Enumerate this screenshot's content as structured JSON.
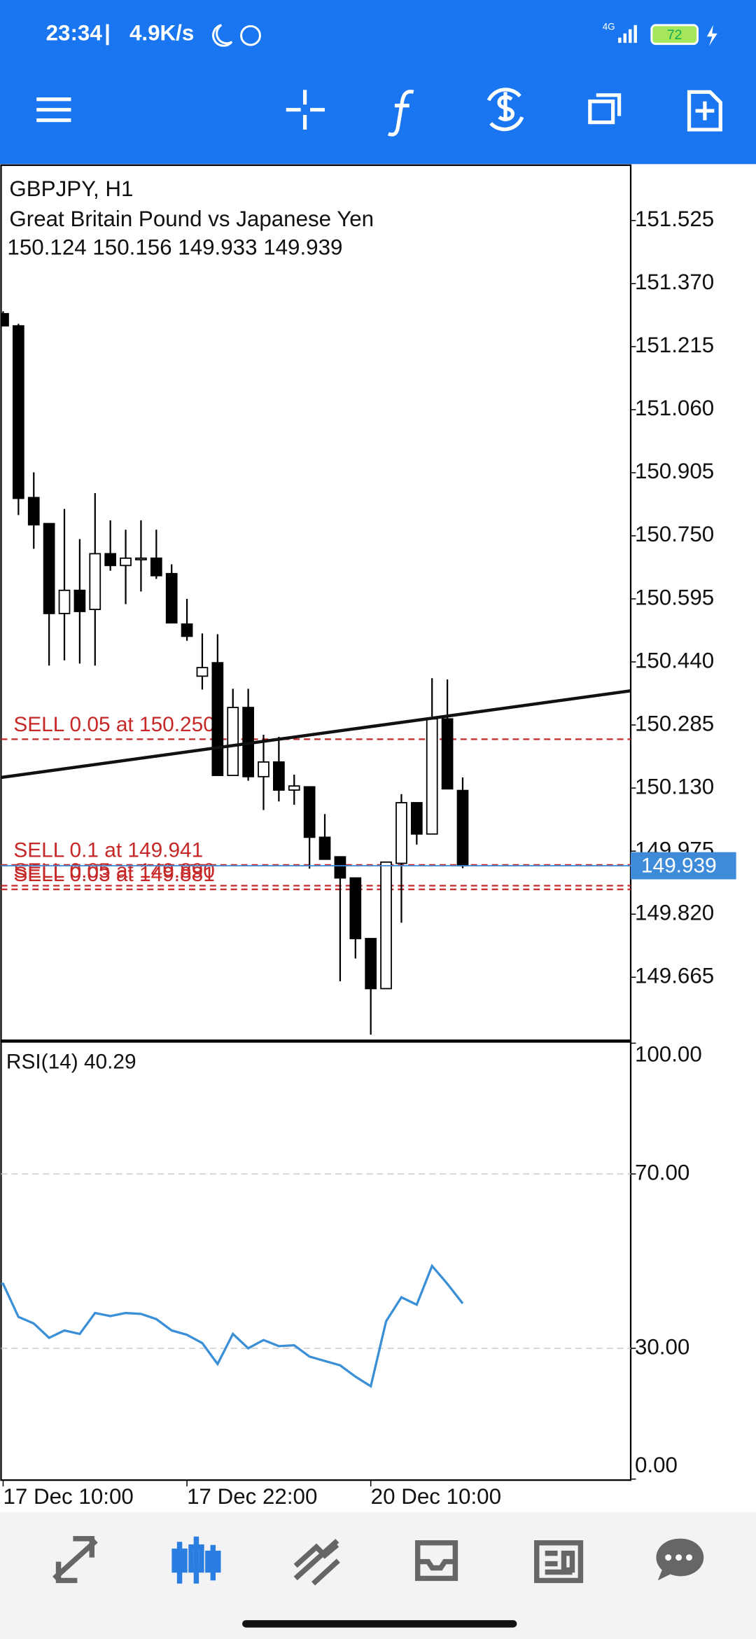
{
  "status_bar": {
    "time": "23:34",
    "speed": "4.9K/s",
    "network": "4G",
    "battery": "72"
  },
  "chart_data": [
    {
      "type": "candlestick",
      "title": "GBPJPY, H1",
      "subtitle": "Great Britain Pound vs Japanese Yen",
      "ohlc_label": "150.124 150.156 149.933 149.939",
      "categories": [
        "17 Dec 10:00",
        null,
        null,
        null,
        null,
        null,
        null,
        null,
        null,
        null,
        null,
        null,
        "17 Dec 22:00",
        null,
        null,
        null,
        null,
        null,
        null,
        null,
        null,
        null,
        null,
        null,
        "20 Dec 10:00",
        null,
        null,
        null,
        null,
        null,
        null
      ],
      "open": [
        151.296,
        151.266,
        150.844,
        150.78,
        150.559,
        150.616,
        150.569,
        150.706,
        150.677,
        150.695,
        150.695,
        150.657,
        150.533,
        150.405,
        150.438,
        150.161,
        150.328,
        150.158,
        150.194,
        150.125,
        150.133,
        150.009,
        149.961,
        149.909,
        149.76,
        149.637,
        149.945,
        150.094,
        150.017,
        150.3,
        150.124
      ],
      "high": [
        151.302,
        151.271,
        150.906,
        150.78,
        150.816,
        150.742,
        150.855,
        150.788,
        150.765,
        150.788,
        150.765,
        150.68,
        150.595,
        150.51,
        150.508,
        150.374,
        150.374,
        150.261,
        150.256,
        150.163,
        150.133,
        150.066,
        149.961,
        149.909,
        149.76,
        149.948,
        150.115,
        150.094,
        150.4,
        150.397,
        150.156
      ],
      "low": [
        151.266,
        150.801,
        150.718,
        150.431,
        150.444,
        150.436,
        150.431,
        150.664,
        150.582,
        150.613,
        150.644,
        150.536,
        150.492,
        150.372,
        150.161,
        150.161,
        150.148,
        150.076,
        150.097,
        150.089,
        149.932,
        149.955,
        149.655,
        149.711,
        149.524,
        149.637,
        149.799,
        149.991,
        150.017,
        150.128,
        149.933
      ],
      "close": [
        151.266,
        150.842,
        150.777,
        150.559,
        150.616,
        150.564,
        150.706,
        150.677,
        150.695,
        150.695,
        150.652,
        150.536,
        150.503,
        150.426,
        150.161,
        150.328,
        150.158,
        150.194,
        150.125,
        150.135,
        150.009,
        149.955,
        149.909,
        149.76,
        149.637,
        149.948,
        150.094,
        150.017,
        150.3,
        150.128,
        149.939
      ],
      "ylim": [
        149.508,
        151.661
      ],
      "yticks": [
        151.525,
        {
          "value": 151.37,
          "label": "151.370"
        },
        151.215,
        {
          "value": 151.06,
          "label": "151.060"
        },
        150.905,
        {
          "value": 150.75,
          "label": "150.750"
        },
        150.595,
        {
          "value": 150.44,
          "label": "150.440"
        },
        150.285,
        {
          "value": 150.13,
          "label": "150.130"
        },
        149.975,
        {
          "value": 149.82,
          "label": "149.820"
        },
        149.665
      ],
      "orders": [
        {
          "label": "SELL 0.05 at 150.250",
          "value": 150.25
        },
        {
          "label": "SELL 0.1 at 149.941",
          "value": 149.941
        },
        {
          "label": "SELL 0.05 at 149.890",
          "value": 149.89
        },
        {
          "label": "SELL 0.03 at 149.881",
          "value": 149.881
        }
      ],
      "order_color": "#c62828",
      "trendline": {
        "start": 150.156,
        "end": 150.369
      },
      "last_price": 149.939,
      "last_price_color": "#3d8bd9"
    },
    {
      "type": "line",
      "title": "RSI(14) 40.29",
      "color": "#3a8fd6",
      "values": [
        44.8,
        37.2,
        35.7,
        32.4,
        34.1,
        33.3,
        38.1,
        37.4,
        38.1,
        37.9,
        36.7,
        34.1,
        33.1,
        31.2,
        26.4,
        33.3,
        30.0,
        31.9,
        30.5,
        30.7,
        28.1,
        27.1,
        26.1,
        23.5,
        21.3,
        36.2,
        41.7,
        40.0,
        48.9,
        44.8,
        40.29
      ],
      "ylim": [
        0,
        100
      ],
      "yticks": [
        {
          "value": 100,
          "label": "100.00"
        },
        {
          "value": 70,
          "label": "70.00"
        },
        {
          "value": 30,
          "label": "30.00"
        },
        {
          "value": 0,
          "label": "0.00"
        }
      ],
      "grid_levels": [
        70,
        30
      ]
    }
  ]
}
